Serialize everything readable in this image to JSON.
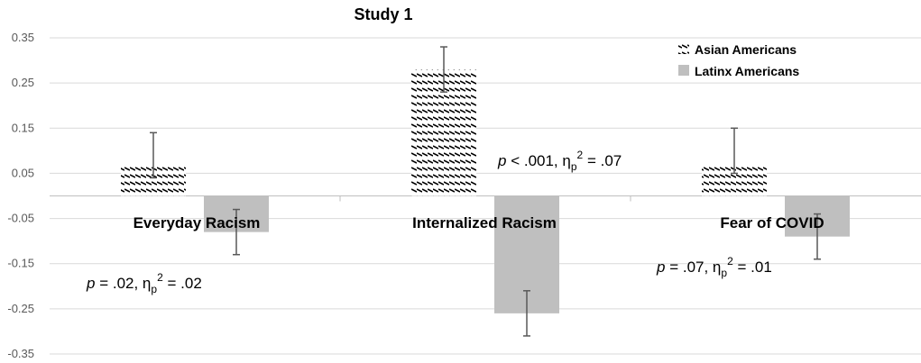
{
  "chart_data": {
    "type": "bar",
    "title": "Study 1",
    "categories": [
      "Everyday Racism",
      "Internalized Racism",
      "Fear of COVID"
    ],
    "series": [
      {
        "name": "Asian Americans",
        "values": [
          0.07,
          0.28,
          0.07
        ],
        "err_low": [
          0.04,
          0.23,
          0.05
        ],
        "err_high": [
          0.14,
          0.33,
          0.15
        ],
        "fill": "hatch"
      },
      {
        "name": "Latinx Americans",
        "values": [
          -0.08,
          -0.26,
          -0.09
        ],
        "err_low": [
          -0.13,
          -0.31,
          -0.14
        ],
        "err_high": [
          -0.03,
          -0.21,
          -0.04
        ],
        "color": "#bfbfbf"
      }
    ],
    "ylim": [
      -0.35,
      0.35
    ],
    "yticks": [
      "0.35",
      "0.25",
      "0.15",
      "0.05",
      "-0.05",
      "-0.15",
      "-0.25",
      "-0.35"
    ],
    "grid": true,
    "legend_position": "top-right",
    "annotations": [
      {
        "p": ".02",
        "eta": ".02"
      },
      {
        "p": "< .001",
        "eta": ".07"
      },
      {
        "p": ".07",
        "eta": ".01"
      }
    ]
  },
  "colors": {
    "grid": "#d9d9d9",
    "latinx": "#bfbfbf",
    "hatch": "#000000",
    "error_bar": "#595959"
  }
}
